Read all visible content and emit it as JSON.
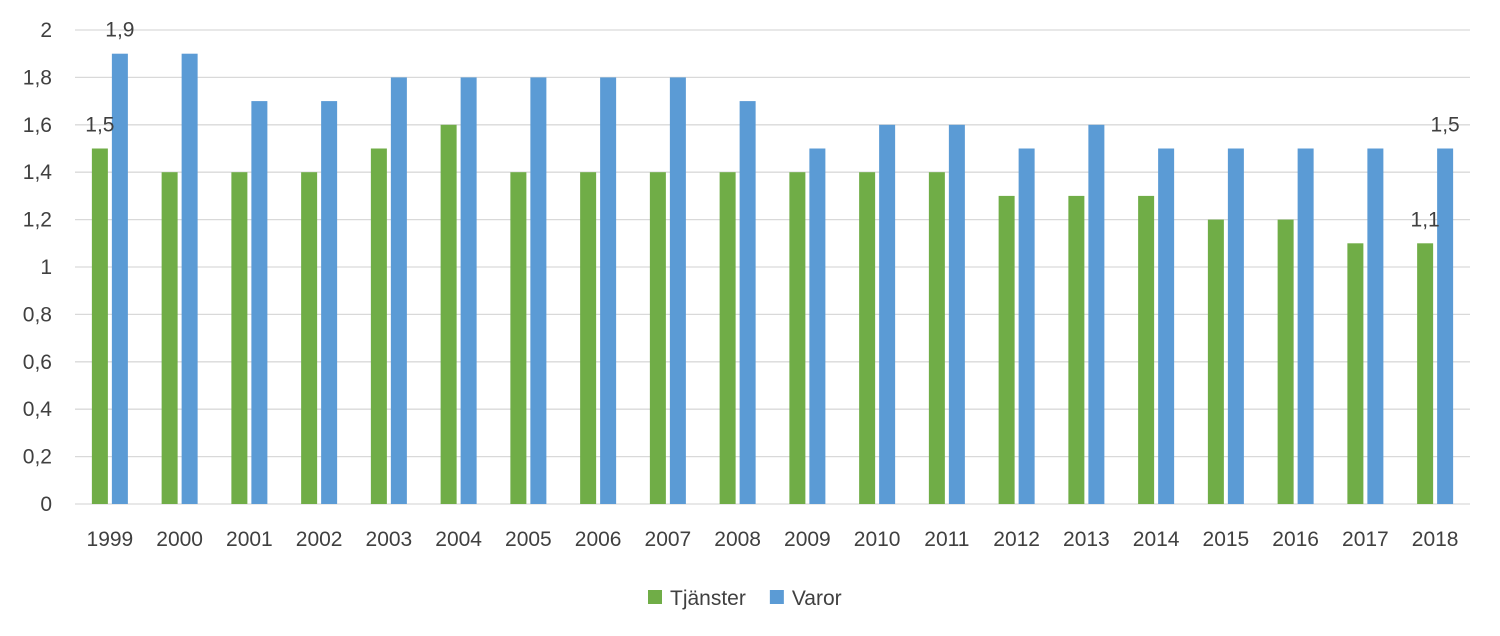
{
  "chart_data": {
    "type": "bar",
    "title": "",
    "xlabel": "",
    "ylabel": "",
    "ylim": [
      0,
      2
    ],
    "y_ticks": [
      "0",
      "0,2",
      "0,4",
      "0,6",
      "0,8",
      "1",
      "1,2",
      "1,4",
      "1,6",
      "1,8",
      "2"
    ],
    "y_tick_values": [
      0,
      0.2,
      0.4,
      0.6,
      0.8,
      1.0,
      1.2,
      1.4,
      1.6,
      1.8,
      2.0
    ],
    "grid": true,
    "legend_position": "bottom",
    "categories": [
      "1999",
      "2000",
      "2001",
      "2002",
      "2003",
      "2004",
      "2005",
      "2006",
      "2007",
      "2008",
      "2009",
      "2010",
      "2011",
      "2012",
      "2013",
      "2014",
      "2015",
      "2016",
      "2017",
      "2018"
    ],
    "series": [
      {
        "name": "Tjänster",
        "color": "#70ad47",
        "values": [
          1.5,
          1.4,
          1.4,
          1.4,
          1.5,
          1.6,
          1.4,
          1.4,
          1.4,
          1.4,
          1.4,
          1.4,
          1.4,
          1.3,
          1.3,
          1.3,
          1.2,
          1.2,
          1.1,
          1.1
        ]
      },
      {
        "name": "Varor",
        "color": "#5b9bd5",
        "values": [
          1.9,
          1.9,
          1.7,
          1.7,
          1.8,
          1.8,
          1.8,
          1.8,
          1.8,
          1.7,
          1.5,
          1.6,
          1.6,
          1.5,
          1.6,
          1.5,
          1.5,
          1.5,
          1.5,
          1.5
        ]
      }
    ],
    "data_labels": [
      {
        "series": 0,
        "index": 0,
        "text": "1,5"
      },
      {
        "series": 1,
        "index": 0,
        "text": "1,9"
      },
      {
        "series": 0,
        "index": 19,
        "text": "1,1"
      },
      {
        "series": 1,
        "index": 19,
        "text": "1,5"
      }
    ]
  }
}
